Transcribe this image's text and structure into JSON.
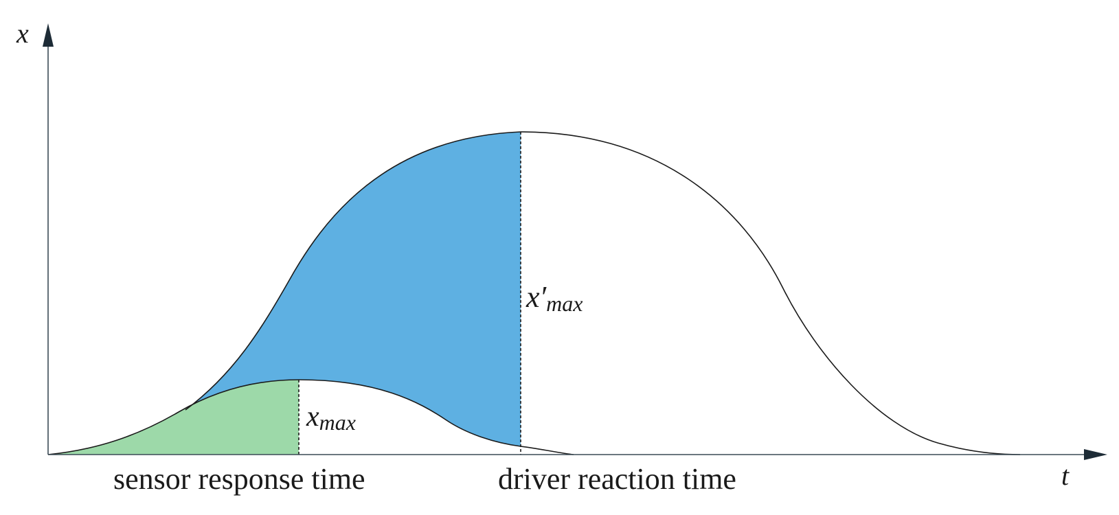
{
  "axes": {
    "x_axis_label": "t",
    "y_axis_label": "x"
  },
  "curves": {
    "small": {
      "peak_label_base": "x",
      "peak_label_sub": "max"
    },
    "large": {
      "peak_label_base": "x′",
      "peak_label_sub": "max"
    }
  },
  "regions": {
    "sensor_color": "#9dd9a9",
    "driver_color": "#5eb0e2"
  },
  "markers": {
    "sensor_label": "sensor response time",
    "driver_label": "driver reaction time"
  },
  "colors": {
    "line": "#1a1a1a",
    "axis": "#3a4a55",
    "arrowhead": "#1d2b36"
  }
}
